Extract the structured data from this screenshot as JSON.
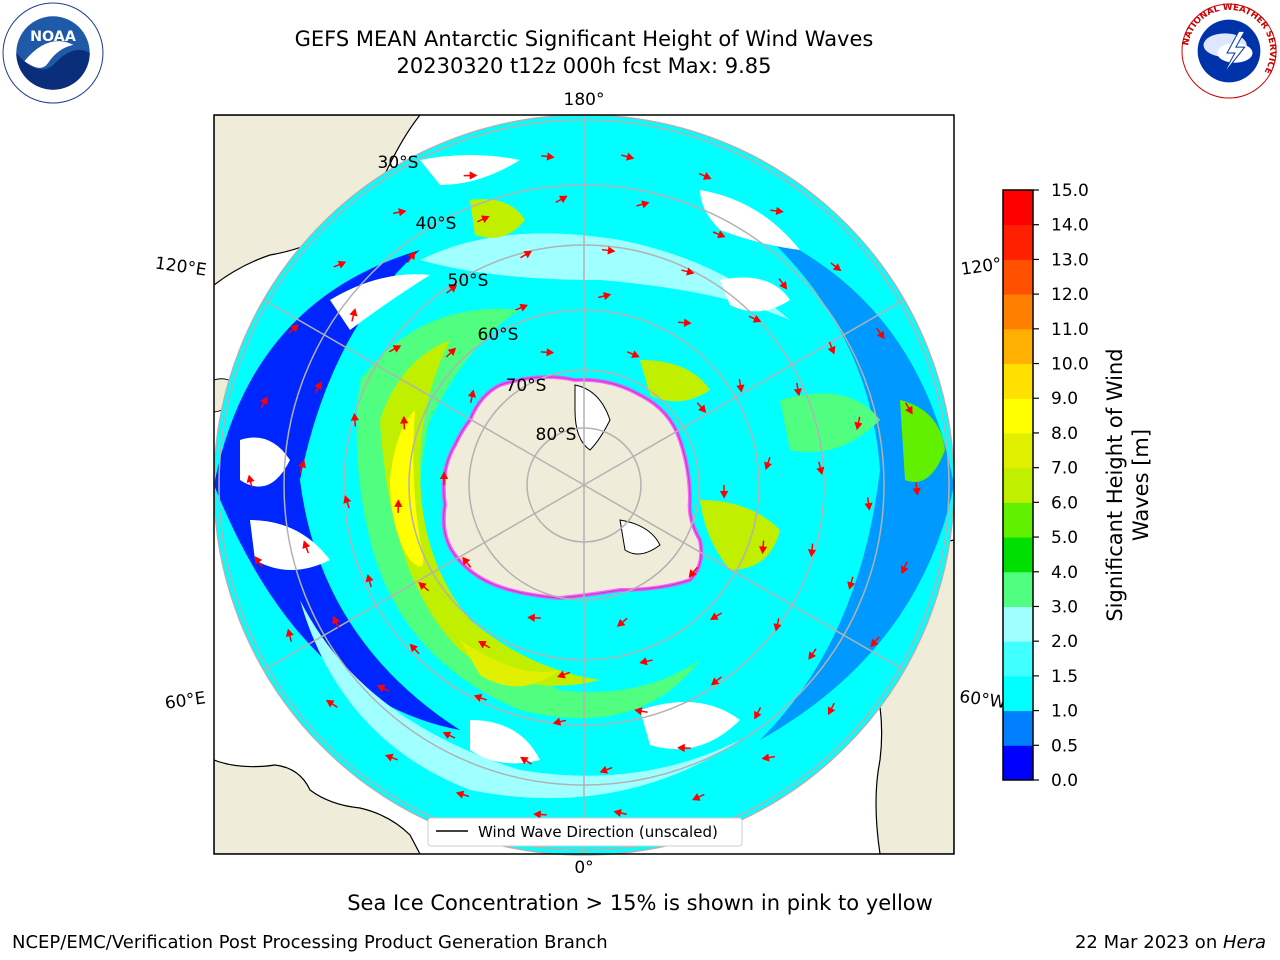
{
  "header": {
    "title_line1": "GEFS MEAN Antarctic Significant Height of Wind Waves",
    "title_line2": "20230320 t12z 000h fcst   Max: 9.85"
  },
  "logos": {
    "noaa": {
      "text": "NOAA",
      "ring_text": "NATIONAL OCEANIC AND ATMOSPHERIC ADMINISTRATION · U.S. DEPARTMENT OF COMMERCE"
    },
    "nws": {
      "ring_text": "NATIONAL WEATHER SERVICE"
    }
  },
  "map": {
    "projection": "south-polar-stereographic",
    "longitude_labels": {
      "top": "180°",
      "bottom": "0°",
      "upper_left": "120°E",
      "upper_right": "120°",
      "lower_left": "60°E",
      "lower_right": "60°W"
    },
    "latitude_labels": [
      "30°S",
      "40°S",
      "50°S",
      "60°S",
      "70°S",
      "80°S"
    ],
    "legend_label": "Wind Wave Direction (unscaled)",
    "colors": {
      "land": "#efecd9",
      "ocean_empty": "#ffffff",
      "arrow": "#ff0000",
      "graticule": "#b2b2b2",
      "sea_ice": "#ff44ff"
    }
  },
  "colorbar": {
    "label": "Significant Height of Wind Waves [m]",
    "label_line1": "Significant Height of Wind",
    "label_line2": "Waves [m]",
    "ticks": [
      "0.0",
      "0.5",
      "1.0",
      "1.5",
      "2.0",
      "3.0",
      "4.0",
      "5.0",
      "6.0",
      "7.0",
      "8.0",
      "9.0",
      "10.0",
      "11.0",
      "12.0",
      "13.0",
      "14.0",
      "15.0"
    ],
    "colors": [
      "#0000ff",
      "#0080ff",
      "#00ffff",
      "#40ffff",
      "#a0ffff",
      "#50ff80",
      "#00e000",
      "#60f000",
      "#c0f000",
      "#e0f000",
      "#ffff00",
      "#ffe000",
      "#ffb000",
      "#ff8000",
      "#ff5000",
      "#ff2000",
      "#ff0000"
    ]
  },
  "captions": {
    "sea_ice": "Sea Ice Concentration > 15% is shown in pink to yellow"
  },
  "footer": {
    "left": "NCEP/EMC/Verification Post Processing Product Generation Branch",
    "right_date": "22 Mar 2023 on ",
    "right_host": "Hera"
  }
}
